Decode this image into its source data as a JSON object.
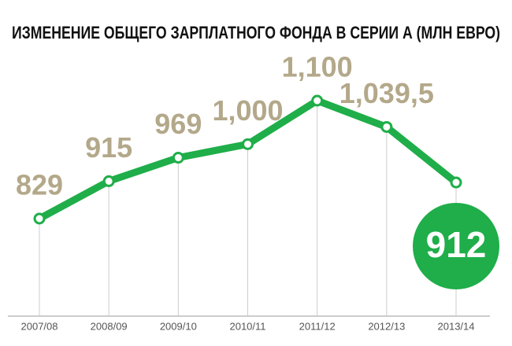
{
  "chart_data": {
    "type": "line",
    "title": "ИЗМЕНЕНИЕ ОБЩЕГО ЗАРПЛАТНОГО ФОНДА В СЕРИИ А (МЛН ЕВРО)",
    "categories": [
      "2007/08",
      "2008/09",
      "2009/10",
      "2010/11",
      "2011/12",
      "2012/13",
      "2013/14"
    ],
    "values": [
      829,
      915,
      969,
      1000,
      1100,
      1039.5,
      912
    ],
    "value_labels": [
      "829",
      "915",
      "969",
      "1,000",
      "1,100",
      "1,039,5",
      "912"
    ],
    "color": "#1fae49"
  }
}
